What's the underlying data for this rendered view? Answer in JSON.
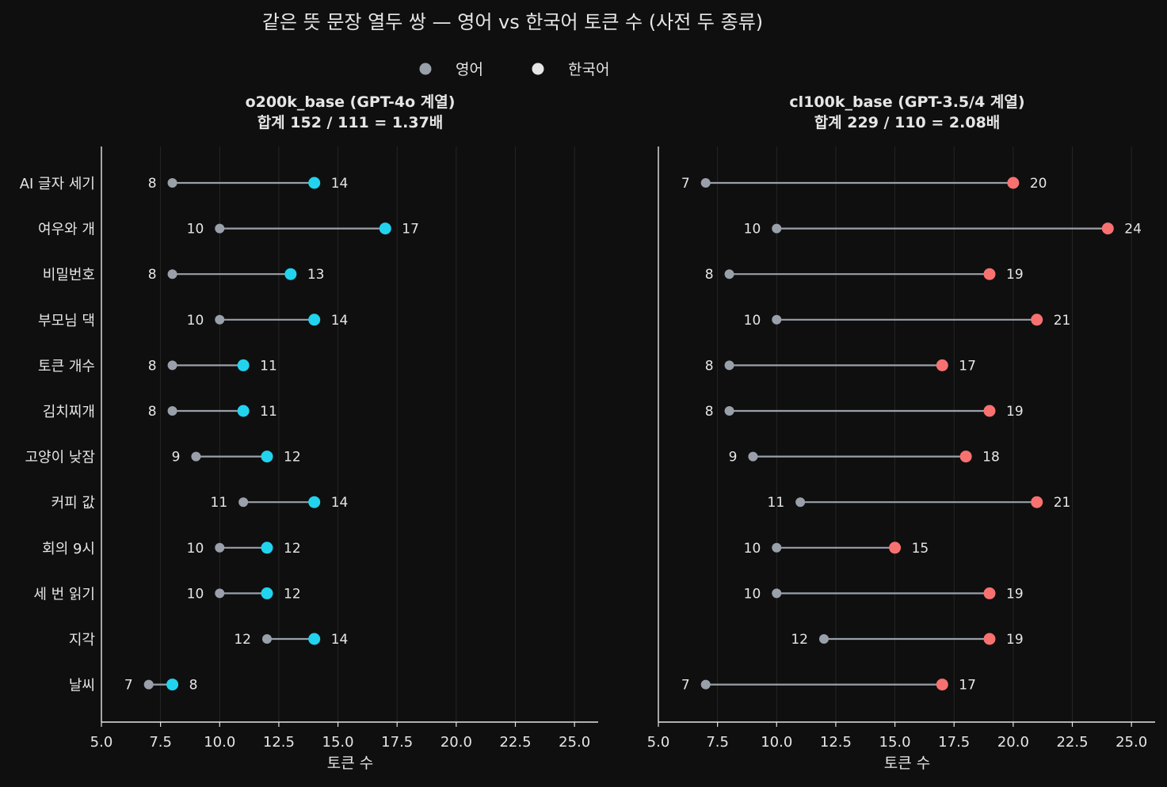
{
  "title": "같은 뜻 문장 열두 쌍 — 영어 vs 한국어 토큰 수 (사전 두 종류)",
  "legend": {
    "items": [
      {
        "label": "영어",
        "color": "#9aa0aa"
      },
      {
        "label": "한국어",
        "color": "#e6e6e6"
      }
    ]
  },
  "colors": {
    "background": "#0f0f0f",
    "text": "#e6e6e6",
    "english": "#9aa0aa",
    "korean_o200k": "#22d3ee",
    "korean_cl100k": "#f87171"
  },
  "chart_data": [
    {
      "type": "dumbbell",
      "title": "o200k_base (GPT-4o 계열)",
      "subtitle": "합계 152 / 111 = 1.37배",
      "xlabel": "토큰 수",
      "ylabel": "",
      "xlim": [
        5,
        26
      ],
      "xticks": [
        "5.0",
        "7.5",
        "10.0",
        "12.5",
        "15.0",
        "17.5",
        "20.0",
        "22.5",
        "25.0"
      ],
      "xtick_values": [
        5,
        7.5,
        10,
        12.5,
        15,
        17.5,
        20,
        22.5,
        25
      ],
      "grid": "vertical",
      "categories": [
        "AI 글자 세기",
        "여우와 개",
        "비밀번호",
        "부모님 댁",
        "토큰 개수",
        "김치찌개",
        "고양이 낮잠",
        "커피 값",
        "회의 9시",
        "세 번 읽기",
        "지각",
        "날씨"
      ],
      "series": [
        {
          "name": "영어",
          "color": "#9aa0aa",
          "values": [
            8,
            10,
            8,
            10,
            8,
            8,
            9,
            11,
            10,
            10,
            12,
            7
          ]
        },
        {
          "name": "한국어",
          "color": "#22d3ee",
          "values": [
            14,
            17,
            13,
            14,
            11,
            11,
            12,
            14,
            12,
            12,
            14,
            8
          ]
        }
      ]
    },
    {
      "type": "dumbbell",
      "title": "cl100k_base (GPT-3.5/4 계열)",
      "subtitle": "합계 229 / 110 = 2.08배",
      "xlabel": "토큰 수",
      "ylabel": "",
      "xlim": [
        5,
        26
      ],
      "xticks": [
        "5.0",
        "7.5",
        "10.0",
        "12.5",
        "15.0",
        "17.5",
        "20.0",
        "22.5",
        "25.0"
      ],
      "xtick_values": [
        5,
        7.5,
        10,
        12.5,
        15,
        17.5,
        20,
        22.5,
        25
      ],
      "grid": "vertical",
      "categories": [
        "AI 글자 세기",
        "여우와 개",
        "비밀번호",
        "부모님 댁",
        "토큰 개수",
        "김치찌개",
        "고양이 낮잠",
        "커피 값",
        "회의 9시",
        "세 번 읽기",
        "지각",
        "날씨"
      ],
      "series": [
        {
          "name": "영어",
          "color": "#9aa0aa",
          "values": [
            7,
            10,
            8,
            10,
            8,
            8,
            9,
            11,
            10,
            10,
            12,
            7
          ]
        },
        {
          "name": "한국어",
          "color": "#f87171",
          "values": [
            20,
            24,
            19,
            21,
            17,
            19,
            18,
            21,
            15,
            19,
            19,
            17
          ]
        }
      ]
    }
  ]
}
